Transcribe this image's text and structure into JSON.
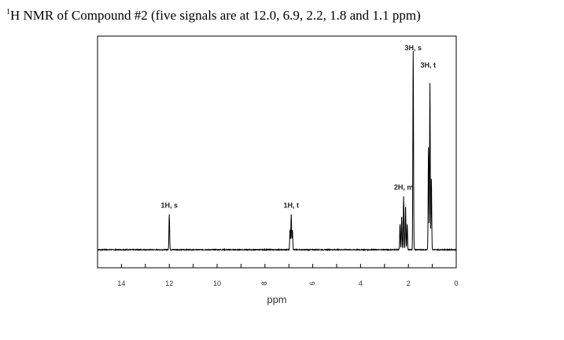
{
  "title_prefix": "1",
  "title": "H NMR of Compound #2 (five signals are at 12.0, 6.9, 2.2, 1.8 and 1.1 ppm)",
  "chart_data": {
    "type": "line",
    "title": "1H NMR of Compound #2 (five signals are at 12.0, 6.9, 2.2, 1.8 and 1.1 ppm)",
    "xlabel": "ppm",
    "ylabel": "",
    "xlim": [
      15,
      0
    ],
    "x_reversed": true,
    "grid": false,
    "x_ticks": [
      14,
      12,
      10,
      8,
      6,
      4,
      2,
      0
    ],
    "tick_rotation": {
      "8": -90,
      "6": -90
    },
    "baseline": 0.0,
    "ylim": [
      -0.1,
      1.0
    ],
    "peaks": [
      {
        "ppm": 12.0,
        "label": "1H, s",
        "multiplicity": "s",
        "lines": [
          {
            "x": 12.0,
            "h": 0.18
          }
        ]
      },
      {
        "ppm": 6.9,
        "label": "1H, t",
        "multiplicity": "t",
        "lines": [
          {
            "x": 6.95,
            "h": 0.1
          },
          {
            "x": 6.9,
            "h": 0.18
          },
          {
            "x": 6.85,
            "h": 0.1
          }
        ]
      },
      {
        "ppm": 2.2,
        "label": "2H, m",
        "multiplicity": "m",
        "lines": [
          {
            "x": 2.35,
            "h": 0.13
          },
          {
            "x": 2.28,
            "h": 0.17
          },
          {
            "x": 2.2,
            "h": 0.27
          },
          {
            "x": 2.12,
            "h": 0.22
          },
          {
            "x": 2.05,
            "h": 0.13
          }
        ]
      },
      {
        "ppm": 1.8,
        "label": "3H, s",
        "multiplicity": "s",
        "lines": [
          {
            "x": 1.8,
            "h": 1.0
          }
        ]
      },
      {
        "ppm": 1.1,
        "label": "3H, t",
        "multiplicity": "t",
        "lines": [
          {
            "x": 1.16,
            "h": 0.52
          },
          {
            "x": 1.1,
            "h": 0.84
          },
          {
            "x": 1.04,
            "h": 0.36
          }
        ]
      }
    ]
  }
}
